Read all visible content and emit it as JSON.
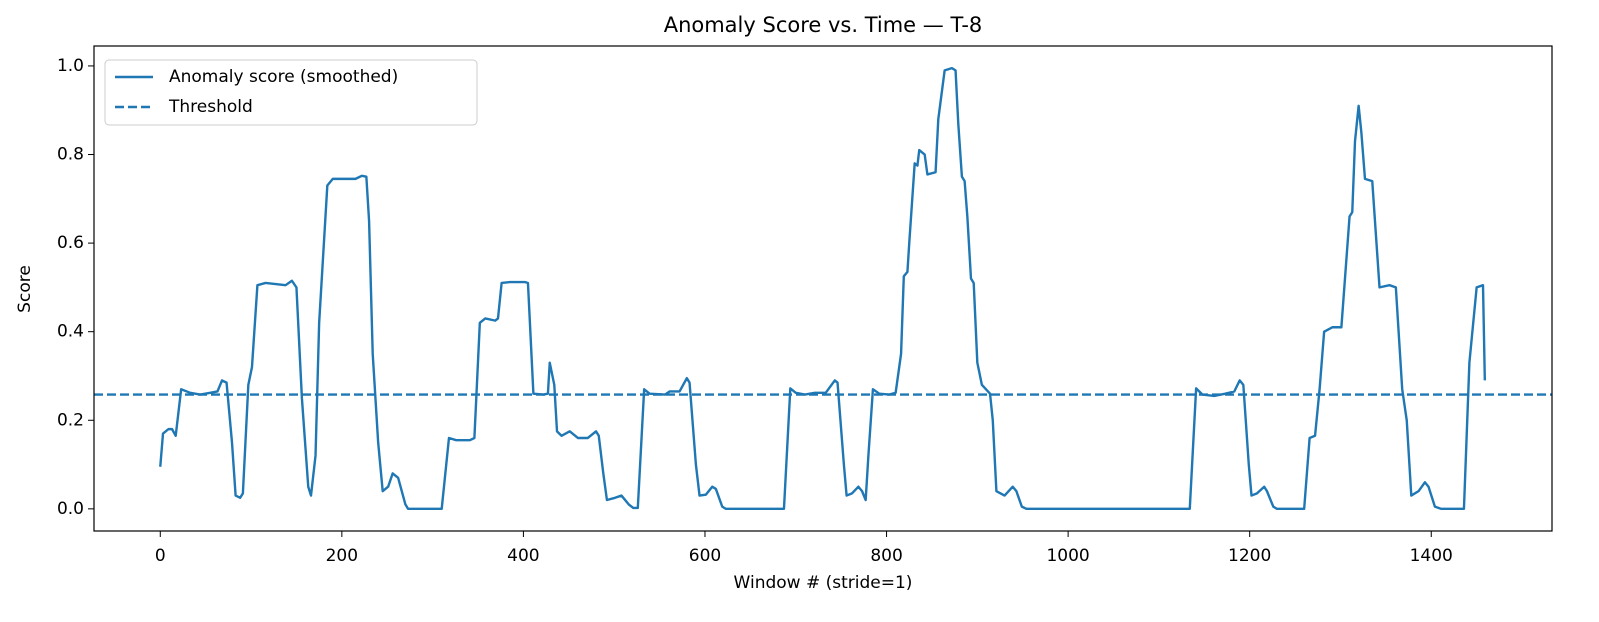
{
  "chart_data": {
    "type": "line",
    "title": "Anomaly Score vs. Time — T-8",
    "x_label": "Window # (stride=1)",
    "y_label": "Score",
    "xlim": [
      -73,
      1533
    ],
    "ylim": [
      -0.05,
      1.045
    ],
    "xticks": [
      0,
      200,
      400,
      600,
      800,
      1000,
      1200,
      1400
    ],
    "yticks": [
      {
        "value": 0,
        "label": "0.0"
      },
      {
        "value": 0.2,
        "label": "0.2"
      },
      {
        "value": 0.4,
        "label": "0.4"
      },
      {
        "value": 0.6,
        "label": "0.6"
      },
      {
        "value": 0.8,
        "label": "0.8"
      },
      {
        "value": 1.0,
        "label": "1.0"
      }
    ],
    "legend": "upper left",
    "x": [
      0,
      3,
      9,
      13,
      17,
      23,
      33,
      44,
      55,
      63,
      68,
      73,
      79,
      83,
      88,
      91,
      97,
      101,
      107,
      116,
      138,
      145,
      150,
      156,
      163,
      166,
      171,
      175,
      184,
      190,
      198,
      215,
      222,
      227,
      230,
      234,
      240,
      245,
      251,
      256,
      262,
      270,
      273,
      310,
      318,
      326,
      341,
      346,
      352,
      358,
      369,
      372,
      376,
      385,
      402,
      405,
      411,
      422,
      427,
      429,
      434,
      437,
      442,
      451,
      460,
      471,
      480,
      483,
      488,
      492,
      501,
      508,
      516,
      521,
      526,
      533,
      539,
      556,
      561,
      572,
      580,
      583,
      590,
      594,
      601,
      608,
      612,
      619,
      623,
      687,
      694,
      700,
      710,
      721,
      733,
      743,
      746,
      753,
      756,
      762,
      769,
      773,
      777,
      780,
      785,
      792,
      803,
      810,
      816,
      819,
      823,
      825,
      831,
      834,
      836,
      842,
      845,
      854,
      857,
      864,
      872,
      876,
      879,
      883,
      886,
      889,
      893,
      896,
      900,
      905,
      914,
      917,
      921,
      930,
      939,
      943,
      949,
      954,
      1134,
      1141,
      1148,
      1161,
      1173,
      1183,
      1189,
      1193,
      1199,
      1202,
      1208,
      1216,
      1219,
      1226,
      1230,
      1260,
      1266,
      1272,
      1277,
      1282,
      1291,
      1301,
      1310,
      1313,
      1316,
      1320,
      1323,
      1327,
      1335,
      1339,
      1343,
      1354,
      1361,
      1368,
      1373,
      1378,
      1386,
      1393,
      1397,
      1404,
      1411,
      1436,
      1442,
      1450,
      1457,
      1459
    ],
    "series": [
      {
        "name": "Anomaly score (smoothed)",
        "color": "#1f77b4",
        "values": [
          0.095,
          0.17,
          0.18,
          0.18,
          0.165,
          0.27,
          0.262,
          0.258,
          0.262,
          0.265,
          0.29,
          0.285,
          0.15,
          0.03,
          0.025,
          0.035,
          0.28,
          0.32,
          0.505,
          0.51,
          0.505,
          0.515,
          0.5,
          0.25,
          0.05,
          0.03,
          0.12,
          0.42,
          0.73,
          0.745,
          0.745,
          0.745,
          0.752,
          0.75,
          0.65,
          0.35,
          0.15,
          0.04,
          0.05,
          0.08,
          0.07,
          0.01,
          0,
          0,
          0.16,
          0.155,
          0.155,
          0.16,
          0.42,
          0.43,
          0.425,
          0.43,
          0.51,
          0.512,
          0.512,
          0.51,
          0.26,
          0.258,
          0.26,
          0.33,
          0.28,
          0.175,
          0.165,
          0.175,
          0.16,
          0.16,
          0.175,
          0.165,
          0.08,
          0.02,
          0.025,
          0.03,
          0.01,
          0.002,
          0.002,
          0.27,
          0.26,
          0.258,
          0.265,
          0.265,
          0.295,
          0.285,
          0.1,
          0.03,
          0.032,
          0.05,
          0.045,
          0.005,
          0,
          0,
          0.272,
          0.262,
          0.258,
          0.262,
          0.262,
          0.29,
          0.285,
          0.1,
          0.03,
          0.035,
          0.05,
          0.04,
          0.02,
          0.12,
          0.27,
          0.26,
          0.258,
          0.262,
          0.35,
          0.525,
          0.535,
          0.6,
          0.78,
          0.775,
          0.81,
          0.8,
          0.755,
          0.76,
          0.88,
          0.99,
          0.995,
          0.99,
          0.87,
          0.75,
          0.74,
          0.66,
          0.52,
          0.51,
          0.33,
          0.28,
          0.26,
          0.2,
          0.04,
          0.03,
          0.05,
          0.04,
          0.005,
          0,
          0,
          0.272,
          0.258,
          0.255,
          0.26,
          0.265,
          0.29,
          0.28,
          0.1,
          0.03,
          0.035,
          0.05,
          0.04,
          0.005,
          0,
          0,
          0.16,
          0.165,
          0.27,
          0.4,
          0.41,
          0.41,
          0.66,
          0.67,
          0.83,
          0.91,
          0.85,
          0.745,
          0.74,
          0.62,
          0.5,
          0.505,
          0.5,
          0.27,
          0.2,
          0.03,
          0.04,
          0.06,
          0.05,
          0.005,
          0,
          0,
          0.33,
          0.5,
          0.505,
          0.29
        ]
      },
      {
        "name": "Threshold",
        "color": "#1f77b4",
        "dashed": true,
        "hline": 0.258
      }
    ]
  }
}
